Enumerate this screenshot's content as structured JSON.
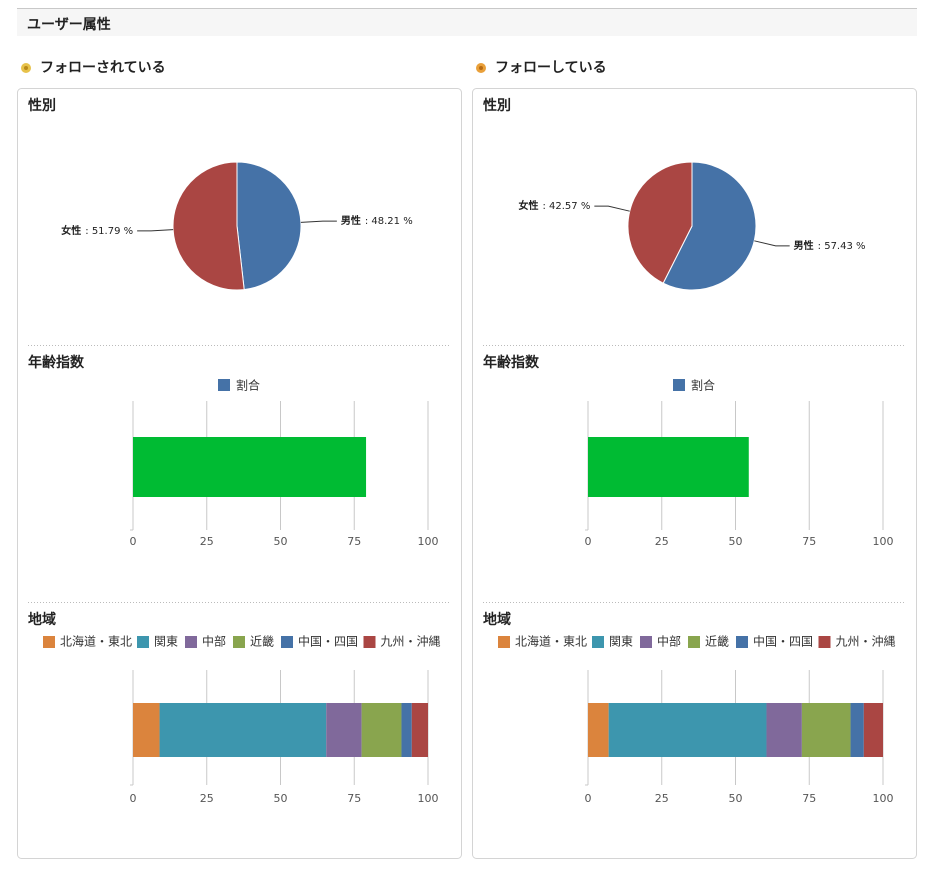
{
  "header": {
    "title": "ユーザー属性"
  },
  "panels": [
    {
      "title": "フォローされている"
    },
    {
      "title": "フォローしている"
    }
  ],
  "chart_data": [
    {
      "type": "pie",
      "title": "性別",
      "categories": [
        "男性",
        "女性"
      ],
      "values": [
        48.21,
        51.79
      ],
      "value_labels": [
        ": 48.21 %",
        ": 51.79 %"
      ],
      "colors": [
        "#4572a7",
        "#aa4643"
      ]
    },
    {
      "type": "bar",
      "orientation": "horizontal",
      "title": "年齢指数",
      "categories": [
        null
      ],
      "series": [
        {
          "name": "割合",
          "color": "#4572a7",
          "values": [
            79
          ]
        }
      ],
      "bar_color": "#00bb33",
      "xlim": [
        0,
        100
      ],
      "xticks": [
        0,
        25,
        50,
        75,
        100
      ],
      "grid": true,
      "legend": "top"
    },
    {
      "type": "stacked_bar",
      "orientation": "horizontal",
      "title": "地域",
      "categories": [
        null
      ],
      "series": [
        {
          "name": "北海道・東北",
          "color": "#db843d",
          "values": [
            9
          ]
        },
        {
          "name": "関東",
          "color": "#3d96ae",
          "values": [
            56.5
          ]
        },
        {
          "name": "中部",
          "color": "#80699b",
          "values": [
            12
          ]
        },
        {
          "name": "近畿",
          "color": "#89a54e",
          "values": [
            13.5
          ]
        },
        {
          "name": "中国・四国",
          "color": "#4572a7",
          "values": [
            3.5
          ]
        },
        {
          "name": "九州・沖縄",
          "color": "#aa4643",
          "values": [
            5.5
          ]
        }
      ],
      "xlim": [
        0,
        100
      ],
      "xticks": [
        0,
        25,
        50,
        75,
        100
      ],
      "grid": true,
      "legend": "top-left"
    },
    {
      "type": "pie",
      "title": "性別",
      "categories": [
        "男性",
        "女性"
      ],
      "values": [
        57.43,
        42.57
      ],
      "value_labels": [
        ": 57.43 %",
        ": 42.57 %"
      ],
      "colors": [
        "#4572a7",
        "#aa4643"
      ]
    },
    {
      "type": "bar",
      "orientation": "horizontal",
      "title": "年齢指数",
      "categories": [
        null
      ],
      "series": [
        {
          "name": "割合",
          "color": "#4572a7",
          "values": [
            54.5
          ]
        }
      ],
      "bar_color": "#00bb33",
      "xlim": [
        0,
        100
      ],
      "xticks": [
        0,
        25,
        50,
        75,
        100
      ],
      "grid": true,
      "legend": "top"
    },
    {
      "type": "stacked_bar",
      "orientation": "horizontal",
      "title": "地域",
      "categories": [
        null
      ],
      "series": [
        {
          "name": "北海道・東北",
          "color": "#db843d",
          "values": [
            7
          ]
        },
        {
          "name": "関東",
          "color": "#3d96ae",
          "values": [
            53.5
          ]
        },
        {
          "name": "中部",
          "color": "#80699b",
          "values": [
            12
          ]
        },
        {
          "name": "近畿",
          "color": "#89a54e",
          "values": [
            16.5
          ]
        },
        {
          "name": "中国・四国",
          "color": "#4572a7",
          "values": [
            4.5
          ]
        },
        {
          "name": "九州・沖縄",
          "color": "#aa4643",
          "values": [
            6.5
          ]
        }
      ],
      "xlim": [
        0,
        100
      ],
      "xticks": [
        0,
        25,
        50,
        75,
        100
      ],
      "grid": true,
      "legend": "top-left"
    }
  ]
}
